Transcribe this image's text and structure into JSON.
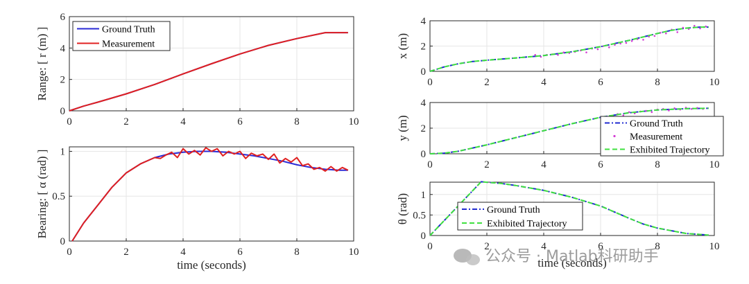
{
  "chart_data": [
    {
      "type": "line",
      "id": "range",
      "ylabel": "Range: [ r (m) ]",
      "xlabel": "",
      "xlim": [
        0,
        10
      ],
      "ylim": [
        0,
        6
      ],
      "xticks": [
        "0",
        "2",
        "4",
        "6",
        "8",
        "10"
      ],
      "yticks": [
        "0",
        "2",
        "4",
        "6"
      ],
      "legend": [
        "Ground Truth",
        "Measurement"
      ],
      "series": [
        {
          "name": "Ground Truth",
          "color": "#2a2ad6",
          "dash": "solid",
          "x": [
            0,
            0.5,
            1,
            2,
            3,
            4,
            5,
            6,
            7,
            8,
            9,
            9.8
          ],
          "y": [
            0,
            0.3,
            0.55,
            1.08,
            1.68,
            2.35,
            3.0,
            3.62,
            4.17,
            4.6,
            4.98,
            4.98
          ]
        },
        {
          "name": "Measurement",
          "color": "#e02020",
          "dash": "solid",
          "x": [
            0,
            0.5,
            1,
            2,
            3,
            4,
            5,
            6,
            7,
            8,
            9,
            9.8
          ],
          "y": [
            0,
            0.3,
            0.55,
            1.08,
            1.68,
            2.35,
            3.0,
            3.62,
            4.17,
            4.6,
            4.98,
            4.98
          ]
        }
      ]
    },
    {
      "type": "line",
      "id": "bearing",
      "ylabel": "Bearing: [ α (rad) ]",
      "xlabel": "time (seconds)",
      "xlim": [
        0,
        10
      ],
      "ylim": [
        0,
        1.05
      ],
      "xticks": [
        "0",
        "2",
        "4",
        "6",
        "8",
        "10"
      ],
      "yticks": [
        "0",
        "0.5",
        "1"
      ],
      "legend": [],
      "series": [
        {
          "name": "Ground Truth",
          "color": "#2a2ad6",
          "dash": "solid",
          "x": [
            0.1,
            0.5,
            1,
            1.5,
            2,
            2.5,
            3,
            3.5,
            4,
            4.5,
            5,
            5.5,
            6,
            6.5,
            7,
            7.5,
            8,
            8.5,
            9,
            9.5,
            9.8
          ],
          "y": [
            0,
            0.2,
            0.4,
            0.6,
            0.76,
            0.86,
            0.93,
            0.97,
            0.99,
            1.0,
            1.0,
            0.99,
            0.97,
            0.95,
            0.92,
            0.89,
            0.85,
            0.82,
            0.8,
            0.79,
            0.79
          ]
        },
        {
          "name": "Measurement",
          "color": "#e02020",
          "dash": "solid",
          "x": [
            0.1,
            0.5,
            1,
            1.5,
            2,
            2.5,
            3,
            3.2,
            3.4,
            3.6,
            3.8,
            4,
            4.2,
            4.4,
            4.6,
            4.8,
            5,
            5.2,
            5.4,
            5.6,
            5.8,
            6,
            6.2,
            6.4,
            6.6,
            6.8,
            7,
            7.2,
            7.4,
            7.6,
            7.8,
            8,
            8.2,
            8.4,
            8.6,
            8.8,
            9,
            9.2,
            9.4,
            9.6,
            9.8
          ],
          "y": [
            0,
            0.2,
            0.4,
            0.6,
            0.76,
            0.86,
            0.93,
            0.92,
            0.96,
            0.99,
            0.93,
            1.03,
            0.97,
            1.01,
            0.96,
            1.04,
            1.0,
            1.03,
            0.95,
            1.0,
            0.97,
            1.0,
            0.92,
            0.98,
            0.95,
            0.97,
            0.91,
            0.97,
            0.87,
            0.92,
            0.88,
            0.93,
            0.84,
            0.86,
            0.8,
            0.82,
            0.78,
            0.83,
            0.78,
            0.82,
            0.79
          ]
        }
      ]
    },
    {
      "type": "line",
      "id": "x",
      "ylabel": "x (m)",
      "xlabel": "",
      "xlim": [
        0,
        10
      ],
      "ylim": [
        0,
        4
      ],
      "xticks": [
        "0",
        "2",
        "4",
        "6",
        "8",
        "10"
      ],
      "yticks": [
        "0",
        "2",
        "4"
      ],
      "legend": [],
      "series": [
        {
          "name": "Ground Truth",
          "color": "#1f2ad0",
          "dash": "dashdot",
          "x": [
            0,
            0.5,
            1,
            1.5,
            2,
            3,
            4,
            5,
            6,
            7,
            8,
            8.5,
            9,
            9.5,
            9.8
          ],
          "y": [
            0,
            0.35,
            0.6,
            0.78,
            0.88,
            1.05,
            1.25,
            1.55,
            1.95,
            2.45,
            3.0,
            3.25,
            3.42,
            3.5,
            3.5
          ]
        },
        {
          "name": "Measurement",
          "color": "#d43bd4",
          "dash": "dots",
          "x": [
            3.7,
            3.9,
            4.1,
            4.3,
            4.5,
            4.7,
            4.9,
            5.1,
            5.3,
            5.5,
            5.7,
            5.9,
            6.1,
            6.3,
            6.5,
            6.7,
            6.9,
            7.1,
            7.3,
            7.5,
            7.7,
            7.9,
            8.1,
            8.3,
            8.5,
            8.7,
            8.9,
            9.1,
            9.3,
            9.5,
            9.7
          ],
          "y": [
            1.3,
            1.15,
            1.3,
            1.35,
            1.3,
            1.5,
            1.45,
            1.55,
            1.65,
            1.5,
            1.8,
            1.75,
            2.0,
            1.9,
            2.1,
            2.2,
            2.25,
            2.4,
            2.55,
            2.5,
            2.75,
            2.8,
            3.05,
            3.0,
            3.3,
            3.1,
            3.45,
            3.35,
            3.6,
            3.4,
            3.55
          ]
        },
        {
          "name": "Exhibited Trajectory",
          "color": "#3fe03f",
          "dash": "dash",
          "x": [
            0,
            0.5,
            1,
            1.5,
            2,
            3,
            4,
            5,
            6,
            7,
            8,
            8.5,
            9,
            9.5,
            9.8
          ],
          "y": [
            0,
            0.35,
            0.6,
            0.78,
            0.88,
            1.05,
            1.25,
            1.55,
            1.95,
            2.45,
            3.0,
            3.25,
            3.42,
            3.5,
            3.5
          ]
        }
      ]
    },
    {
      "type": "line",
      "id": "y",
      "ylabel": "y (m)",
      "xlabel": "",
      "xlim": [
        0,
        10
      ],
      "ylim": [
        0,
        4
      ],
      "xticks": [
        "0",
        "2",
        "4",
        "6",
        "8",
        "10"
      ],
      "yticks": [
        "0",
        "2",
        "4"
      ],
      "legend": [
        "Ground Truth",
        "Measurement",
        "Exhibited Trajectory"
      ],
      "series": [
        {
          "name": "Ground Truth",
          "color": "#1f2ad0",
          "dash": "dashdot",
          "x": [
            0,
            0.5,
            1,
            2,
            3,
            4,
            5,
            6,
            7,
            8,
            9,
            9.8
          ],
          "y": [
            0,
            0.05,
            0.2,
            0.7,
            1.25,
            1.8,
            2.35,
            2.85,
            3.2,
            3.42,
            3.52,
            3.55
          ]
        },
        {
          "name": "Measurement",
          "color": "#d43bd4",
          "dash": "dots",
          "x": [
            6.6,
            6.8,
            7.0,
            7.2,
            7.4,
            7.6,
            7.8,
            8.0,
            8.2,
            8.4,
            8.6,
            8.8,
            9.0,
            9.2,
            9.4,
            9.6
          ],
          "y": [
            3.1,
            3.0,
            3.25,
            3.15,
            3.3,
            3.35,
            3.25,
            3.45,
            3.5,
            3.38,
            3.55,
            3.45,
            3.6,
            3.5,
            3.58,
            3.5
          ]
        },
        {
          "name": "Exhibited Trajectory",
          "color": "#3fe03f",
          "dash": "dash",
          "x": [
            0,
            0.5,
            1,
            2,
            3,
            4,
            5,
            6,
            7,
            8,
            9,
            9.8
          ],
          "y": [
            0,
            0.05,
            0.2,
            0.7,
            1.25,
            1.8,
            2.35,
            2.85,
            3.2,
            3.42,
            3.52,
            3.55
          ]
        }
      ]
    },
    {
      "type": "line",
      "id": "theta",
      "ylabel": "θ (rad)",
      "xlabel": "time (seconds)",
      "xlim": [
        0,
        10
      ],
      "ylim": [
        0,
        1.3
      ],
      "xticks": [
        "0",
        "2",
        "4",
        "6",
        "8",
        "10"
      ],
      "yticks": [
        "0",
        "0.5",
        "1"
      ],
      "legend": [
        "Ground Truth",
        "Exhibited Trajectory"
      ],
      "series": [
        {
          "name": "Ground Truth",
          "color": "#1f2ad0",
          "dash": "dashdot",
          "x": [
            0,
            1.8,
            2.5,
            3,
            4,
            5,
            6,
            7,
            7.5,
            8,
            9,
            9.8
          ],
          "y": [
            0,
            1.31,
            1.27,
            1.22,
            1.1,
            0.93,
            0.72,
            0.42,
            0.28,
            0.18,
            0.05,
            0.01
          ]
        },
        {
          "name": "Exhibited Trajectory",
          "color": "#3fe03f",
          "dash": "dash",
          "x": [
            0,
            1.8,
            2.5,
            3,
            4,
            5,
            6,
            7,
            7.5,
            8,
            9,
            9.8
          ],
          "y": [
            0,
            1.31,
            1.27,
            1.22,
            1.1,
            0.93,
            0.72,
            0.42,
            0.28,
            0.18,
            0.05,
            0.01
          ]
        }
      ]
    }
  ],
  "watermark": "公众号 · Matlab科研助手",
  "watermark_icon": "wechat-icon"
}
